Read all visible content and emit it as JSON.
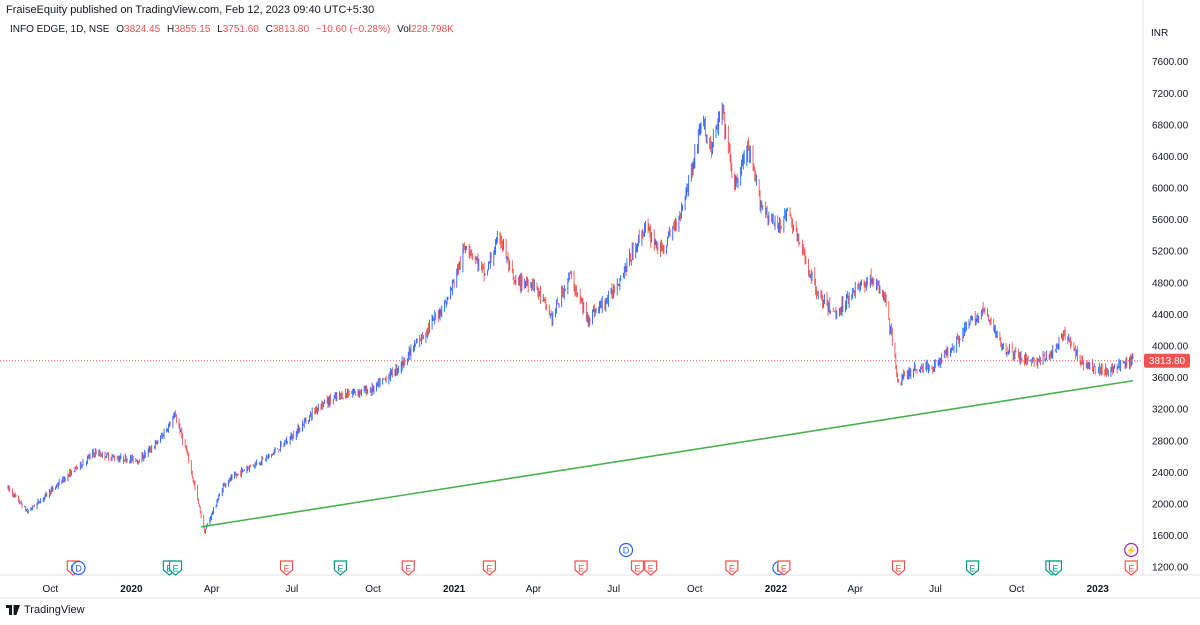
{
  "header": {
    "published": "FraiseEquity published on TradingView.com, Feb 12, 2023 09:40 UTC+5:30",
    "symbol": "INFO EDGE, 1D, NSE",
    "o_label": "O",
    "o": "3824.45",
    "h_label": "H",
    "h": "3855.15",
    "l_label": "L",
    "l": "3751.60",
    "c_label": "C",
    "c": "3813.80",
    "change": "−10.60 (−0.28%)",
    "vol_label": "Vol",
    "vol": "228.798K"
  },
  "footer": {
    "brand": "TradingView"
  },
  "colors": {
    "up": "#2962ff",
    "down": "#ef5350",
    "trendline": "#4caf50",
    "price_tag": "#ef5350"
  },
  "chart_data": {
    "type": "candlestick",
    "currency": "INR",
    "last_price": "3813.80",
    "ylim": [
      1100,
      7900
    ],
    "y_ticks": [
      "1200.00",
      "1600.00",
      "2000.00",
      "2400.00",
      "2800.00",
      "3200.00",
      "3600.00",
      "4000.00",
      "4400.00",
      "4800.00",
      "5200.00",
      "5600.00",
      "6000.00",
      "6400.00",
      "6800.00",
      "7200.00",
      "7600.00"
    ],
    "y_tick_values": [
      1200,
      1600,
      2000,
      2400,
      2800,
      3200,
      3600,
      4000,
      4400,
      4800,
      5200,
      5600,
      6000,
      6400,
      6800,
      7200,
      7600
    ],
    "x_ticks": [
      {
        "label": "Oct",
        "date": "2019-10-01",
        "bold": false
      },
      {
        "label": "2020",
        "date": "2020-01-01",
        "bold": true
      },
      {
        "label": "Apr",
        "date": "2020-04-01",
        "bold": false
      },
      {
        "label": "Jul",
        "date": "2020-07-01",
        "bold": false
      },
      {
        "label": "Oct",
        "date": "2020-10-01",
        "bold": false
      },
      {
        "label": "2021",
        "date": "2021-01-01",
        "bold": true
      },
      {
        "label": "Apr",
        "date": "2021-04-01",
        "bold": false
      },
      {
        "label": "Jul",
        "date": "2021-07-01",
        "bold": false
      },
      {
        "label": "Oct",
        "date": "2021-10-01",
        "bold": false
      },
      {
        "label": "2022",
        "date": "2022-01-01",
        "bold": true
      },
      {
        "label": "Apr",
        "date": "2022-04-01",
        "bold": false
      },
      {
        "label": "Jul",
        "date": "2022-07-01",
        "bold": false
      },
      {
        "label": "Oct",
        "date": "2022-10-01",
        "bold": false
      },
      {
        "label": "2023",
        "date": "2023-01-01",
        "bold": true
      }
    ],
    "date_range": [
      "2019-08-14",
      "2023-02-10"
    ],
    "price_path": [
      [
        "2019-08-14",
        2200
      ],
      [
        "2019-09-05",
        1900
      ],
      [
        "2019-09-30",
        2150
      ],
      [
        "2019-10-25",
        2400
      ],
      [
        "2019-11-20",
        2650
      ],
      [
        "2019-12-15",
        2580
      ],
      [
        "2020-01-10",
        2560
      ],
      [
        "2020-02-01",
        2800
      ],
      [
        "2020-02-20",
        3120
      ],
      [
        "2020-03-05",
        2600
      ],
      [
        "2020-03-24",
        1650
      ],
      [
        "2020-04-15",
        2250
      ],
      [
        "2020-05-10",
        2450
      ],
      [
        "2020-06-05",
        2600
      ],
      [
        "2020-07-01",
        2850
      ],
      [
        "2020-08-01",
        3250
      ],
      [
        "2020-09-01",
        3400
      ],
      [
        "2020-10-01",
        3450
      ],
      [
        "2020-11-01",
        3750
      ],
      [
        "2020-12-01",
        4200
      ],
      [
        "2020-12-25",
        4600
      ],
      [
        "2021-01-15",
        5300
      ],
      [
        "2021-02-05",
        4900
      ],
      [
        "2021-02-22",
        5400
      ],
      [
        "2021-03-10",
        4800
      ],
      [
        "2021-04-01",
        4800
      ],
      [
        "2021-04-22",
        4350
      ],
      [
        "2021-05-12",
        4900
      ],
      [
        "2021-06-01",
        4350
      ],
      [
        "2021-06-25",
        4600
      ],
      [
        "2021-07-15",
        5000
      ],
      [
        "2021-08-05",
        5500
      ],
      [
        "2021-08-25",
        5200
      ],
      [
        "2021-09-15",
        5700
      ],
      [
        "2021-10-01",
        6400
      ],
      [
        "2021-10-08",
        6850
      ],
      [
        "2021-10-20",
        6500
      ],
      [
        "2021-11-01",
        7000
      ],
      [
        "2021-11-15",
        6000
      ],
      [
        "2021-11-30",
        6500
      ],
      [
        "2021-12-15",
        5800
      ],
      [
        "2022-01-01",
        5500
      ],
      [
        "2022-01-15",
        5700
      ],
      [
        "2022-02-01",
        5150
      ],
      [
        "2022-02-20",
        4600
      ],
      [
        "2022-03-10",
        4400
      ],
      [
        "2022-03-30",
        4700
      ],
      [
        "2022-04-20",
        4850
      ],
      [
        "2022-05-05",
        4600
      ],
      [
        "2022-05-20",
        3550
      ],
      [
        "2022-06-05",
        3700
      ],
      [
        "2022-06-30",
        3750
      ],
      [
        "2022-07-20",
        4000
      ],
      [
        "2022-08-10",
        4300
      ],
      [
        "2022-08-25",
        4450
      ],
      [
        "2022-09-15",
        4000
      ],
      [
        "2022-10-05",
        3850
      ],
      [
        "2022-10-25",
        3800
      ],
      [
        "2022-11-10",
        3900
      ],
      [
        "2022-11-25",
        4150
      ],
      [
        "2022-12-10",
        3850
      ],
      [
        "2022-12-28",
        3700
      ],
      [
        "2023-01-15",
        3700
      ],
      [
        "2023-02-10",
        3813.8
      ]
    ],
    "trendline": [
      [
        "2020-03-20",
        1710
      ],
      [
        "2023-02-10",
        3560
      ]
    ],
    "last_price_line": 3813.8,
    "event_markers": [
      {
        "date": "2019-10-27",
        "label": "E",
        "type": "earnings",
        "color": "#ef5350"
      },
      {
        "date": "2019-11-02",
        "label": "D",
        "type": "dividend",
        "color": "#2962ff"
      },
      {
        "date": "2020-02-13",
        "label": "E",
        "type": "earnings",
        "color": "#089981"
      },
      {
        "date": "2020-02-20",
        "label": "E",
        "type": "earnings",
        "color": "#089981"
      },
      {
        "date": "2020-06-25",
        "label": "E",
        "type": "earnings",
        "color": "#ef5350"
      },
      {
        "date": "2020-08-25",
        "label": "E",
        "type": "earnings",
        "color": "#089981"
      },
      {
        "date": "2020-11-10",
        "label": "E",
        "type": "earnings",
        "color": "#ef5350"
      },
      {
        "date": "2021-02-10",
        "label": "E",
        "type": "earnings",
        "color": "#ef5350"
      },
      {
        "date": "2021-05-25",
        "label": "E",
        "type": "earnings",
        "color": "#ef5350"
      },
      {
        "date": "2021-07-28",
        "label": "E",
        "type": "earnings",
        "color": "#ef5350"
      },
      {
        "date": "2021-08-12",
        "label": "E",
        "type": "earnings",
        "color": "#ef5350"
      },
      {
        "date": "2021-11-12",
        "label": "E",
        "type": "earnings",
        "color": "#ef5350"
      },
      {
        "date": "2022-01-05",
        "label": "D",
        "type": "dividend",
        "color": "#2962ff"
      },
      {
        "date": "2022-01-10",
        "label": "E",
        "type": "earnings",
        "color": "#ef5350"
      },
      {
        "date": "2022-05-20",
        "label": "E",
        "type": "earnings",
        "color": "#ef5350"
      },
      {
        "date": "2022-08-12",
        "label": "E",
        "type": "earnings",
        "color": "#089981"
      },
      {
        "date": "2022-11-10",
        "label": "E",
        "type": "earnings",
        "color": "#089981"
      },
      {
        "date": "2022-11-14",
        "label": "E",
        "type": "earnings",
        "color": "#089981"
      },
      {
        "date": "2023-02-08",
        "label": "E",
        "type": "earnings",
        "color": "#ef5350"
      }
    ],
    "upper_markers": [
      {
        "date": "2021-07-15",
        "label": "D",
        "type": "dividend",
        "color": "#2962ff"
      },
      {
        "date": "2023-02-08",
        "label": "⚡",
        "type": "split",
        "color": "#9c27b0"
      }
    ]
  }
}
